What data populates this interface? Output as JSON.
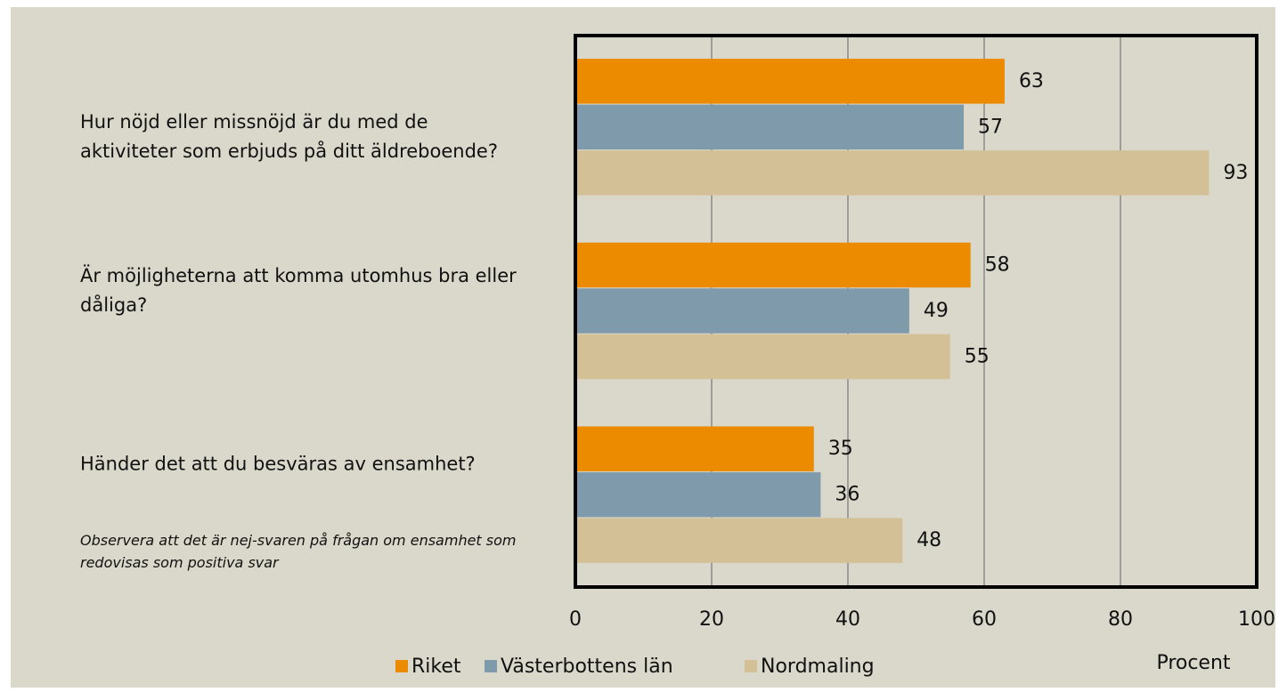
{
  "chart_data": {
    "type": "bar",
    "orientation": "horizontal",
    "categories": [
      "Hur nöjd eller missnöjd är du med de aktiviteter som erbjuds på ditt äldreboende?",
      "Är möjligheterna att komma utomhus bra eller dåliga?",
      "Händer det att du besväras av ensamhet?"
    ],
    "annotation": "Observera att det är nej-svaren på frågan om ensamhet som redovisas som positiva svar",
    "x_label": "Procent",
    "series": [
      {
        "name": "Riket",
        "color": "#ec8b00",
        "values": [
          63,
          58,
          35
        ]
      },
      {
        "name": "Västerbottens län",
        "color": "#7f9bab",
        "values": [
          57,
          49,
          36
        ]
      },
      {
        "name": "Nordmaling",
        "color": "#d4c097",
        "values": [
          93,
          55,
          48
        ]
      }
    ],
    "xlim": [
      0,
      100
    ],
    "xticks": [
      0,
      20,
      40,
      60,
      80,
      100
    ],
    "grid": true,
    "legend": "bottom"
  }
}
